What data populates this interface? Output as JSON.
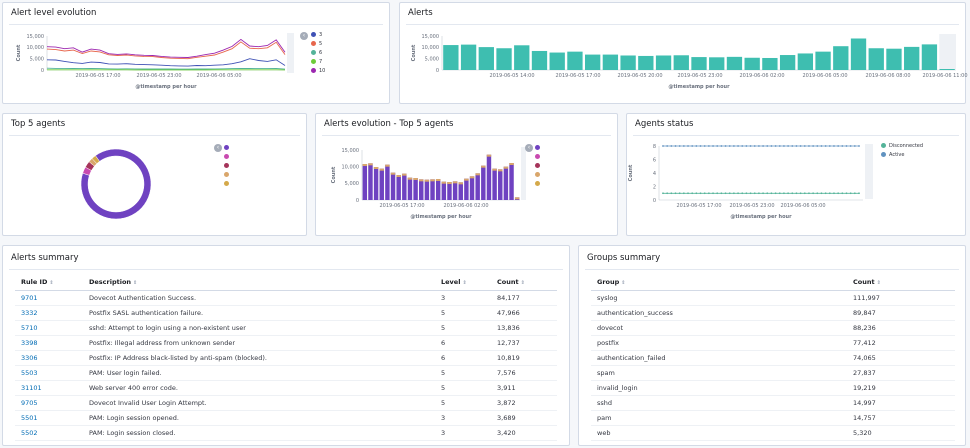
{
  "panels": {
    "alert_level": {
      "title": "Alert level evolution",
      "ylabel": "Count",
      "xlabel": "@timestamp per hour",
      "y_ticks": [
        "15,000",
        "10,000",
        "5,000",
        "0"
      ],
      "x_ticks": [
        "2019-06-05 17:00",
        "2019-06-05 23:00",
        "2019-06-06 05:00"
      ],
      "legend": [
        {
          "label": "3",
          "color": "#3f51b5"
        },
        {
          "label": "5",
          "color": "#e7664c"
        },
        {
          "label": "6",
          "color": "#54b399"
        },
        {
          "label": "7",
          "color": "#6dcc3a"
        },
        {
          "label": "10",
          "color": "#9c27b0"
        }
      ]
    },
    "alerts": {
      "title": "Alerts",
      "ylabel": "Count",
      "xlabel": "@timestamp per hour",
      "y_ticks": [
        "15,000",
        "10,000",
        "5,000",
        "0"
      ],
      "x_ticks": [
        "2019-06-05 14:00",
        "2019-06-05 17:00",
        "2019-06-05 20:00",
        "2019-06-05 23:00",
        "2019-06-06 02:00",
        "2019-06-06 05:00",
        "2019-06-06 08:00",
        "2019-06-06 11:00"
      ]
    },
    "top5": {
      "title": "Top 5 agents",
      "legend_colors": [
        "#6f42c1",
        "#c94ab0",
        "#a5345a",
        "#d9a66b",
        "#d4a94a"
      ]
    },
    "alerts_top5": {
      "title": "Alerts evolution - Top 5 agents",
      "ylabel": "Count",
      "xlabel": "@timestamp per hour",
      "y_ticks": [
        "15,000",
        "10,000",
        "5,000",
        "0"
      ],
      "x_ticks": [
        "2019-06-05 17:00",
        "2019-06-06 02:00"
      ],
      "legend_colors": [
        "#6f42c1",
        "#c94ab0",
        "#a5345a",
        "#d9a66b",
        "#d4a94a"
      ]
    },
    "agents_status": {
      "title": "Agents status",
      "ylabel": "Count",
      "xlabel": "@timestamp per hour",
      "y_ticks": [
        "8",
        "6",
        "4",
        "2",
        "0"
      ],
      "x_ticks": [
        "2019-06-05 17:00",
        "2019-06-05 23:00",
        "2019-06-06 05:00"
      ],
      "legend": [
        {
          "label": "Disconnected",
          "color": "#54b399"
        },
        {
          "label": "Active",
          "color": "#6092c0"
        }
      ]
    },
    "alerts_summary": {
      "title": "Alerts summary",
      "headers": [
        "Rule ID",
        "Description",
        "Level",
        "Count"
      ],
      "rows": [
        [
          "9701",
          "Dovecot Authentication Success.",
          "3",
          "84,177"
        ],
        [
          "3332",
          "Postfix SASL authentication failure.",
          "5",
          "47,966"
        ],
        [
          "5710",
          "sshd: Attempt to login using a non-existent user",
          "5",
          "13,836"
        ],
        [
          "3398",
          "Postfix: Illegal address from unknown sender",
          "6",
          "12,737"
        ],
        [
          "3306",
          "Postfix: IP Address black-listed by anti-spam (blocked).",
          "6",
          "10,819"
        ],
        [
          "5503",
          "PAM: User login failed.",
          "5",
          "7,576"
        ],
        [
          "31101",
          "Web server 400 error code.",
          "5",
          "3,911"
        ],
        [
          "9705",
          "Dovecot Invalid User Login Attempt.",
          "5",
          "3,872"
        ],
        [
          "5501",
          "PAM: Login session opened.",
          "3",
          "3,689"
        ],
        [
          "5502",
          "PAM: Login session closed.",
          "3",
          "3,420"
        ]
      ]
    },
    "groups_summary": {
      "title": "Groups summary",
      "headers": [
        "Group",
        "Count"
      ],
      "rows": [
        [
          "syslog",
          "111,997"
        ],
        [
          "authentication_success",
          "89,847"
        ],
        [
          "dovecot",
          "88,236"
        ],
        [
          "postfix",
          "77,412"
        ],
        [
          "authentication_failed",
          "74,065"
        ],
        [
          "spam",
          "27,837"
        ],
        [
          "invalid_login",
          "19,219"
        ],
        [
          "sshd",
          "14,997"
        ],
        [
          "pam",
          "14,757"
        ],
        [
          "web",
          "5,320"
        ]
      ]
    }
  },
  "chart_data": [
    {
      "type": "line",
      "title": "Alert level evolution",
      "ylabel": "Count",
      "xlabel": "@timestamp per hour",
      "ylim": [
        0,
        15000
      ],
      "series": [
        {
          "name": "3",
          "values": [
            4500,
            4400,
            3800,
            3200,
            2900,
            3500,
            3300,
            2700,
            2600,
            2800,
            2500,
            2400,
            2300,
            2100,
            1900,
            1800,
            1700,
            2000,
            1900,
            2100,
            2300,
            2800,
            3600,
            5000,
            4200,
            3800,
            4500,
            2000
          ]
        },
        {
          "name": "5",
          "values": [
            9200,
            9000,
            8400,
            8800,
            7300,
            8400,
            8000,
            6700,
            6400,
            6600,
            6200,
            6000,
            5900,
            5500,
            5200,
            5100,
            5000,
            5600,
            6100,
            6600,
            7900,
            9400,
            12400,
            9600,
            9400,
            9800,
            12200,
            6800
          ]
        },
        {
          "name": "6",
          "values": [
            800,
            700,
            700,
            650,
            600,
            650,
            600,
            550,
            500,
            520,
            480,
            460,
            450,
            430,
            420,
            400,
            390,
            420,
            440,
            470,
            520,
            600,
            700,
            650,
            620,
            600,
            650,
            400
          ]
        },
        {
          "name": "7",
          "values": [
            100,
            100,
            90,
            90,
            80,
            80,
            80,
            70,
            70,
            70,
            60,
            60,
            60,
            50,
            50,
            50,
            50,
            60,
            60,
            70,
            80,
            90,
            100,
            90,
            90,
            90,
            100,
            60
          ]
        },
        {
          "name": "10",
          "values": [
            10300,
            10100,
            9400,
            9800,
            7900,
            9200,
            8800,
            7200,
            6900,
            7100,
            6700,
            6500,
            6400,
            6000,
            5700,
            5600,
            5500,
            6100,
            6800,
            7400,
            8800,
            10400,
            13500,
            10600,
            10300,
            10800,
            13300,
            7800
          ]
        }
      ]
    },
    {
      "type": "bar",
      "title": "Alerts",
      "ylabel": "Count",
      "xlabel": "@timestamp per hour",
      "ylim": [
        0,
        15000
      ],
      "values": [
        11000,
        11200,
        10100,
        9600,
        10900,
        8400,
        7700,
        8100,
        6800,
        6800,
        6400,
        6200,
        6400,
        6500,
        5700,
        5600,
        5800,
        5400,
        5300,
        6600,
        7300,
        8100,
        10500,
        13900,
        9600,
        9400,
        10200,
        11300,
        900
      ]
    },
    {
      "type": "pie",
      "title": "Top 5 agents",
      "values": [
        90,
        3,
        3,
        2,
        2
      ]
    },
    {
      "type": "bar",
      "title": "Alerts evolution - Top 5 agents",
      "ylabel": "Count",
      "xlabel": "@timestamp per hour",
      "ylim": [
        0,
        15000
      ],
      "values": [
        10800,
        11000,
        9900,
        9400,
        10600,
        8200,
        7500,
        7900,
        6700,
        6600,
        6200,
        6100,
        6200,
        6300,
        5500,
        5400,
        5600,
        5300,
        6400,
        7100,
        8000,
        10300,
        13600,
        9400,
        9200,
        10000,
        11100,
        800
      ]
    },
    {
      "type": "line",
      "title": "Agents status",
      "ylabel": "Count",
      "xlabel": "@timestamp per hour",
      "ylim": [
        0,
        8
      ],
      "series": [
        {
          "name": "Disconnected",
          "values": [
            1,
            1,
            1,
            1,
            1,
            1,
            1,
            1,
            1,
            1,
            1,
            1,
            1,
            1,
            1,
            1,
            1,
            1,
            1,
            1,
            1,
            1,
            1,
            1,
            1,
            1,
            1,
            1,
            1,
            1,
            1,
            1,
            1,
            1,
            1,
            1,
            1,
            1,
            1,
            1,
            1,
            1,
            1,
            1,
            1,
            1,
            1,
            1
          ]
        },
        {
          "name": "Active",
          "values": [
            8,
            8,
            8,
            8,
            8,
            8,
            8,
            8,
            8,
            8,
            8,
            8,
            8,
            8,
            8,
            8,
            8,
            8,
            8,
            8,
            8,
            8,
            8,
            8,
            8,
            8,
            8,
            8,
            8,
            8,
            8,
            8,
            8,
            8,
            8,
            8,
            8,
            8,
            8,
            8,
            8,
            8,
            8,
            8,
            8,
            8,
            8,
            8
          ]
        }
      ]
    }
  ]
}
